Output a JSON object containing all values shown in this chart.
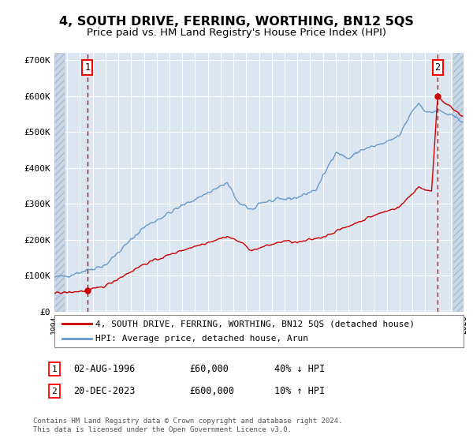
{
  "title": "4, SOUTH DRIVE, FERRING, WORTHING, BN12 5QS",
  "subtitle": "Price paid vs. HM Land Registry's House Price Index (HPI)",
  "title_fontsize": 11.5,
  "subtitle_fontsize": 9.5,
  "plot_bg_color": "#dce6f1",
  "grid_color": "#ffffff",
  "hpi_color": "#6699cc",
  "price_color": "#cc0000",
  "ylim": [
    0,
    720000
  ],
  "yticks": [
    0,
    100000,
    200000,
    300000,
    400000,
    500000,
    600000,
    700000
  ],
  "ytick_labels": [
    "£0",
    "£100K",
    "£200K",
    "£300K",
    "£400K",
    "£500K",
    "£600K",
    "£700K"
  ],
  "sale1_date": 1996.58,
  "sale1_price": 60000,
  "sale2_date": 2023.97,
  "sale2_price": 600000,
  "legend_line1": "4, SOUTH DRIVE, FERRING, WORTHING, BN12 5QS (detached house)",
  "legend_line2": "HPI: Average price, detached house, Arun",
  "ann1_box": "1",
  "ann1_text": "02-AUG-1996",
  "ann1_price": "£60,000",
  "ann1_hpi": "40% ↓ HPI",
  "ann2_box": "2",
  "ann2_text": "20-DEC-2023",
  "ann2_price": "£600,000",
  "ann2_hpi": "10% ↑ HPI",
  "footnote": "Contains HM Land Registry data © Crown copyright and database right 2024.\nThis data is licensed under the Open Government Licence v3.0.",
  "xmin": 1994,
  "xmax": 2026
}
